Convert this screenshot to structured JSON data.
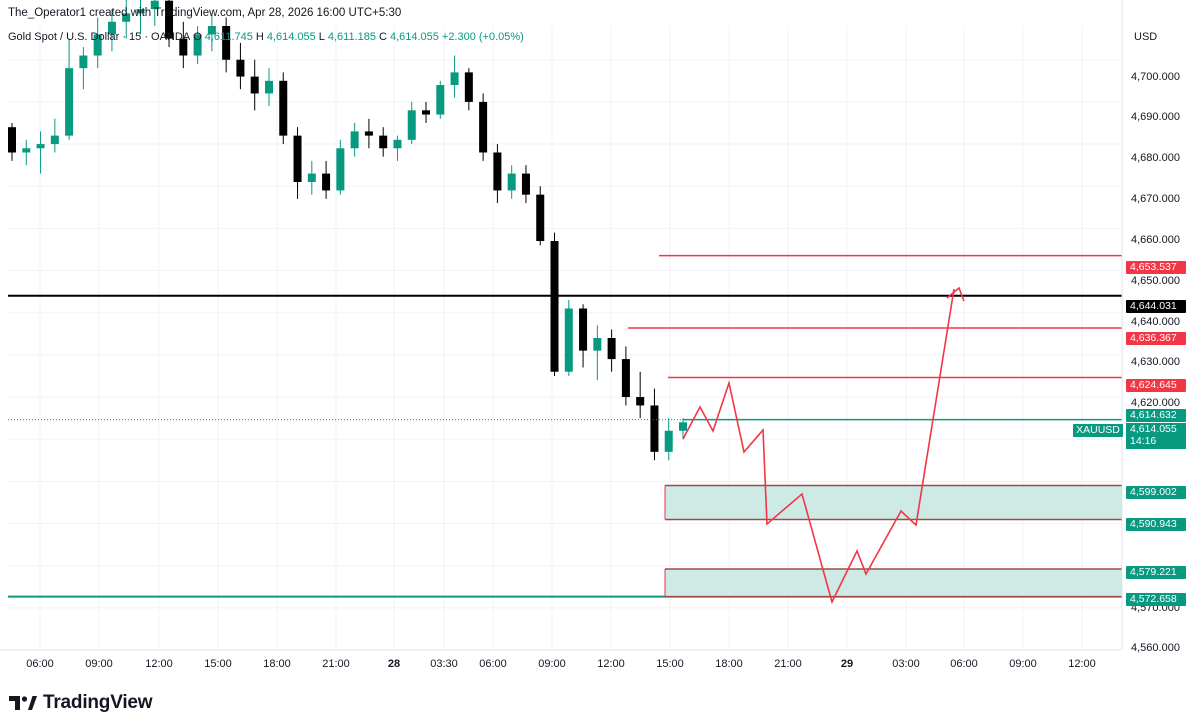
{
  "credit": "The_Operator1 created with TradingView.com, Apr 28, 2026 16:00 UTC+5:30",
  "legend": {
    "symbol": "Gold Spot / U.S. Dollar · 15 · OANDA",
    "o_label": "O",
    "o_value": "4,611.745",
    "h_label": "H",
    "h_value": "4,614.055",
    "l_label": "L",
    "l_value": "4,611.185",
    "c_label": "C",
    "c_value": "4,614.055",
    "change": "+2.300 (+0.05%)"
  },
  "currency": "USD",
  "logo": {
    "text": "TradingView"
  },
  "symbol_tag": "XAUUSD",
  "current_price": {
    "value": "4,614.055",
    "countdown": "14:16"
  },
  "price_labels": [
    {
      "text": "4,653.537",
      "color": "#f23645"
    },
    {
      "text": "4,644.031",
      "color": "#000000"
    },
    {
      "text": "4,636.367",
      "color": "#f23645"
    },
    {
      "text": "4,624.645",
      "color": "#f23645"
    },
    {
      "text": "4,614.632",
      "color": "#089981"
    },
    {
      "text": "4,599.002",
      "color": "#089981"
    },
    {
      "text": "4,590.943",
      "color": "#089981"
    },
    {
      "text": "4,579.221",
      "color": "#089981"
    },
    {
      "text": "4,572.658",
      "color": "#089981"
    }
  ],
  "price_axis": [
    "4,700.000",
    "4,690.000",
    "4,680.000",
    "4,670.000",
    "4,660.000",
    "4,650.000",
    "4,640.000",
    "4,630.000",
    "4,620.000",
    "4,570.000",
    "4,560.000"
  ],
  "time_axis": [
    {
      "text": "06:00"
    },
    {
      "text": "09:00"
    },
    {
      "text": "12:00"
    },
    {
      "text": "15:00"
    },
    {
      "text": "18:00"
    },
    {
      "text": "21:00"
    },
    {
      "text": "28",
      "bold": true
    },
    {
      "text": "03:30"
    },
    {
      "text": "06:00"
    },
    {
      "text": "09:00"
    },
    {
      "text": "12:00"
    },
    {
      "text": "15:00"
    },
    {
      "text": "18:00"
    },
    {
      "text": "21:00"
    },
    {
      "text": "29",
      "bold": true
    },
    {
      "text": "03:00"
    },
    {
      "text": "06:00"
    },
    {
      "text": "09:00"
    },
    {
      "text": "12:00"
    }
  ],
  "colors": {
    "up": "#089981",
    "down": "#000000",
    "level_red": "#f23645",
    "zone_fill": "#cdeae5",
    "zone_border": "#9e4a4a",
    "projection": "#f23645"
  },
  "chart_data": {
    "type": "candlestick",
    "ylim": [
      4560,
      4708
    ],
    "horizontal_levels": [
      {
        "price": 4653.537,
        "color": "red"
      },
      {
        "price": 4644.031,
        "color": "black"
      },
      {
        "price": 4636.367,
        "color": "red"
      },
      {
        "price": 4624.645,
        "color": "red"
      },
      {
        "price": 4614.632,
        "color": "green"
      },
      {
        "price": 4572.658,
        "color": "green"
      }
    ],
    "zones": [
      {
        "top": 4599.002,
        "bottom": 4590.943
      },
      {
        "top": 4579.221,
        "bottom": 4572.658
      }
    ],
    "ohlc_approx": [
      [
        4684,
        4685,
        4676,
        4678
      ],
      [
        4678,
        4681,
        4675,
        4679
      ],
      [
        4679,
        4683,
        4673,
        4680
      ],
      [
        4680,
        4686,
        4678,
        4682
      ],
      [
        4682,
        4705,
        4681,
        4698
      ],
      [
        4698,
        4703,
        4693,
        4701
      ],
      [
        4701,
        4710,
        4698,
        4706
      ],
      [
        4706,
        4712,
        4702,
        4709
      ],
      [
        4709,
        4715,
        4705,
        4711
      ],
      [
        4711,
        4716,
        4706,
        4712
      ],
      [
        4712,
        4718,
        4708,
        4714
      ],
      [
        4714,
        4716,
        4703,
        4705
      ],
      [
        4705,
        4709,
        4698,
        4701
      ],
      [
        4701,
        4708,
        4699,
        4706
      ],
      [
        4706,
        4711,
        4702,
        4708
      ],
      [
        4708,
        4710,
        4697,
        4700
      ],
      [
        4700,
        4704,
        4693,
        4696
      ],
      [
        4696,
        4700,
        4688,
        4692
      ],
      [
        4692,
        4698,
        4689,
        4695
      ],
      [
        4695,
        4697,
        4680,
        4682
      ],
      [
        4682,
        4684,
        4667,
        4671
      ],
      [
        4671,
        4676,
        4668,
        4673
      ],
      [
        4673,
        4676,
        4667,
        4669
      ],
      [
        4669,
        4681,
        4668,
        4679
      ],
      [
        4679,
        4685,
        4677,
        4683
      ],
      [
        4683,
        4686,
        4679,
        4682
      ],
      [
        4682,
        4684,
        4677,
        4679
      ],
      [
        4679,
        4682,
        4676,
        4681
      ],
      [
        4681,
        4690,
        4680,
        4688
      ],
      [
        4688,
        4690,
        4685,
        4687
      ],
      [
        4687,
        4695,
        4686,
        4694
      ],
      [
        4694,
        4701,
        4691,
        4697
      ],
      [
        4697,
        4698,
        4688,
        4690
      ],
      [
        4690,
        4692,
        4676,
        4678
      ],
      [
        4678,
        4680,
        4666,
        4669
      ],
      [
        4669,
        4675,
        4667,
        4673
      ],
      [
        4673,
        4675,
        4666,
        4668
      ],
      [
        4668,
        4670,
        4656,
        4657
      ],
      [
        4657,
        4659,
        4625,
        4626
      ],
      [
        4626,
        4643,
        4625,
        4641
      ],
      [
        4641,
        4642,
        4627,
        4631
      ],
      [
        4631,
        4637,
        4624,
        4634
      ],
      [
        4634,
        4636,
        4626,
        4629
      ],
      [
        4629,
        4632,
        4618,
        4620
      ],
      [
        4620,
        4626,
        4615,
        4618
      ],
      [
        4618,
        4622,
        4605,
        4607
      ],
      [
        4607,
        4615,
        4605,
        4612
      ],
      [
        4612,
        4615,
        4610,
        4614
      ]
    ]
  }
}
